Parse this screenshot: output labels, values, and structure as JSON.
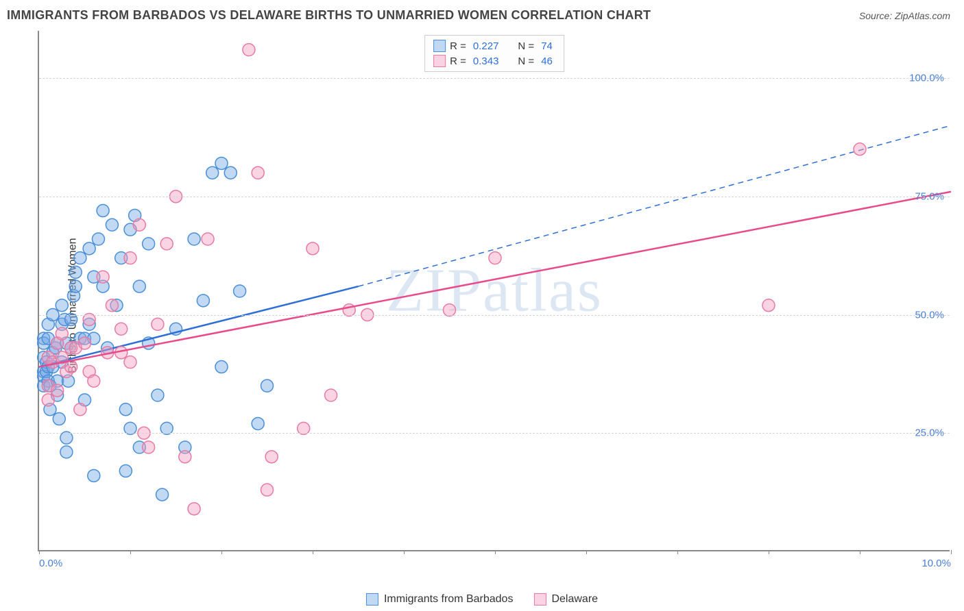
{
  "header": {
    "title": "IMMIGRANTS FROM BARBADOS VS DELAWARE BIRTHS TO UNMARRIED WOMEN CORRELATION CHART",
    "source": "Source: ZipAtlas.com"
  },
  "watermark": "ZIPatlas",
  "chart": {
    "type": "scatter",
    "y_label": "Births to Unmarried Women",
    "xlim": [
      0,
      10
    ],
    "ylim": [
      0,
      110
    ],
    "x_ticks": [
      0,
      5,
      10
    ],
    "x_tick_labels": [
      "0.0%",
      "",
      "10.0%"
    ],
    "x_minor_ticks": [
      1,
      2,
      3,
      4,
      6,
      7,
      8,
      9
    ],
    "y_ticks": [
      25,
      50,
      75,
      100
    ],
    "y_tick_labels": [
      "25.0%",
      "50.0%",
      "75.0%",
      "100.0%"
    ],
    "grid_color": "#d5d5d5",
    "background_color": "#ffffff",
    "axis_color": "#888888",
    "tick_label_color": "#4a7fd8",
    "series": [
      {
        "name": "Immigrants from Barbados",
        "key": "blue",
        "marker_fill": "rgba(120,170,230,0.45)",
        "marker_stroke": "#4a8fd8",
        "marker_radius": 9,
        "line_color": "#2e6fd6",
        "line_width": 2.5,
        "r": "0.227",
        "n": "74",
        "trend_solid": {
          "x1": 0,
          "y1": 39,
          "x2": 3.5,
          "y2": 56
        },
        "trend_dash": {
          "x1": 3.5,
          "y1": 56,
          "x2": 10,
          "y2": 90
        },
        "points": [
          [
            0.05,
            41
          ],
          [
            0.05,
            38
          ],
          [
            0.05,
            37
          ],
          [
            0.05,
            35
          ],
          [
            0.05,
            45
          ],
          [
            0.05,
            44
          ],
          [
            0.08,
            38
          ],
          [
            0.08,
            40
          ],
          [
            0.1,
            39
          ],
          [
            0.1,
            45
          ],
          [
            0.1,
            36
          ],
          [
            0.1,
            48
          ],
          [
            0.12,
            35
          ],
          [
            0.12,
            30
          ],
          [
            0.15,
            39
          ],
          [
            0.15,
            42
          ],
          [
            0.15,
            50
          ],
          [
            0.18,
            43
          ],
          [
            0.2,
            33
          ],
          [
            0.2,
            36
          ],
          [
            0.2,
            44
          ],
          [
            0.22,
            28
          ],
          [
            0.25,
            40
          ],
          [
            0.25,
            48
          ],
          [
            0.25,
            52
          ],
          [
            0.28,
            49
          ],
          [
            0.3,
            21
          ],
          [
            0.3,
            24
          ],
          [
            0.3,
            44
          ],
          [
            0.32,
            36
          ],
          [
            0.35,
            43
          ],
          [
            0.35,
            49
          ],
          [
            0.38,
            54
          ],
          [
            0.4,
            56
          ],
          [
            0.4,
            59
          ],
          [
            0.45,
            45
          ],
          [
            0.45,
            62
          ],
          [
            0.5,
            32
          ],
          [
            0.5,
            45
          ],
          [
            0.55,
            64
          ],
          [
            0.55,
            48
          ],
          [
            0.6,
            58
          ],
          [
            0.6,
            45
          ],
          [
            0.65,
            66
          ],
          [
            0.7,
            56
          ],
          [
            0.7,
            72
          ],
          [
            0.75,
            43
          ],
          [
            0.8,
            69
          ],
          [
            0.85,
            52
          ],
          [
            0.9,
            62
          ],
          [
            0.95,
            17
          ],
          [
            0.95,
            30
          ],
          [
            1.0,
            26
          ],
          [
            1.0,
            68
          ],
          [
            1.05,
            71
          ],
          [
            1.1,
            22
          ],
          [
            1.1,
            56
          ],
          [
            1.2,
            44
          ],
          [
            1.2,
            65
          ],
          [
            1.3,
            33
          ],
          [
            1.4,
            26
          ],
          [
            1.5,
            47
          ],
          [
            1.6,
            22
          ],
          [
            1.7,
            66
          ],
          [
            1.8,
            53
          ],
          [
            1.9,
            80
          ],
          [
            2.0,
            82
          ],
          [
            2.0,
            39
          ],
          [
            2.1,
            80
          ],
          [
            2.2,
            55
          ],
          [
            2.4,
            27
          ],
          [
            2.5,
            35
          ],
          [
            1.35,
            12
          ],
          [
            0.6,
            16
          ]
        ]
      },
      {
        "name": "Delaware",
        "key": "pink",
        "marker_fill": "rgba(245,160,190,0.45)",
        "marker_stroke": "#e87aa3",
        "marker_radius": 9,
        "line_color": "#e84a8a",
        "line_width": 2.5,
        "r": "0.343",
        "n": "46",
        "trend_solid": {
          "x1": 0,
          "y1": 39,
          "x2": 10,
          "y2": 76
        },
        "trend_dash": null,
        "points": [
          [
            0.1,
            41
          ],
          [
            0.1,
            35
          ],
          [
            0.1,
            32
          ],
          [
            0.15,
            40
          ],
          [
            0.2,
            34
          ],
          [
            0.2,
            44
          ],
          [
            0.25,
            46
          ],
          [
            0.25,
            41
          ],
          [
            0.3,
            38
          ],
          [
            0.35,
            43
          ],
          [
            0.35,
            39
          ],
          [
            0.4,
            43
          ],
          [
            0.45,
            30
          ],
          [
            0.5,
            44
          ],
          [
            0.55,
            49
          ],
          [
            0.55,
            38
          ],
          [
            0.6,
            36
          ],
          [
            0.7,
            58
          ],
          [
            0.75,
            42
          ],
          [
            0.8,
            52
          ],
          [
            0.9,
            47
          ],
          [
            0.9,
            42
          ],
          [
            1.0,
            62
          ],
          [
            1.0,
            40
          ],
          [
            1.1,
            69
          ],
          [
            1.15,
            25
          ],
          [
            1.2,
            22
          ],
          [
            1.3,
            48
          ],
          [
            1.4,
            65
          ],
          [
            1.5,
            75
          ],
          [
            1.6,
            20
          ],
          [
            1.7,
            9
          ],
          [
            1.85,
            66
          ],
          [
            2.3,
            106
          ],
          [
            2.4,
            80
          ],
          [
            2.5,
            13
          ],
          [
            2.55,
            20
          ],
          [
            2.9,
            26
          ],
          [
            3.0,
            64
          ],
          [
            3.2,
            33
          ],
          [
            3.4,
            51
          ],
          [
            3.6,
            50
          ],
          [
            4.5,
            51
          ],
          [
            5.0,
            62
          ],
          [
            8.0,
            52
          ],
          [
            9.0,
            85
          ]
        ]
      }
    ]
  },
  "legend_top": {
    "rows": [
      {
        "swatch_fill": "rgba(120,170,230,0.45)",
        "swatch_stroke": "#4a8fd8",
        "r_label": "R =",
        "r": "0.227",
        "n_label": "N =",
        "n": "74"
      },
      {
        "swatch_fill": "rgba(245,160,190,0.45)",
        "swatch_stroke": "#e87aa3",
        "r_label": "R =",
        "r": "0.343",
        "n_label": "N =",
        "n": "46"
      }
    ]
  },
  "legend_bottom": {
    "items": [
      {
        "swatch_fill": "rgba(120,170,230,0.45)",
        "swatch_stroke": "#4a8fd8",
        "label": "Immigrants from Barbados"
      },
      {
        "swatch_fill": "rgba(245,160,190,0.45)",
        "swatch_stroke": "#e87aa3",
        "label": "Delaware"
      }
    ]
  }
}
